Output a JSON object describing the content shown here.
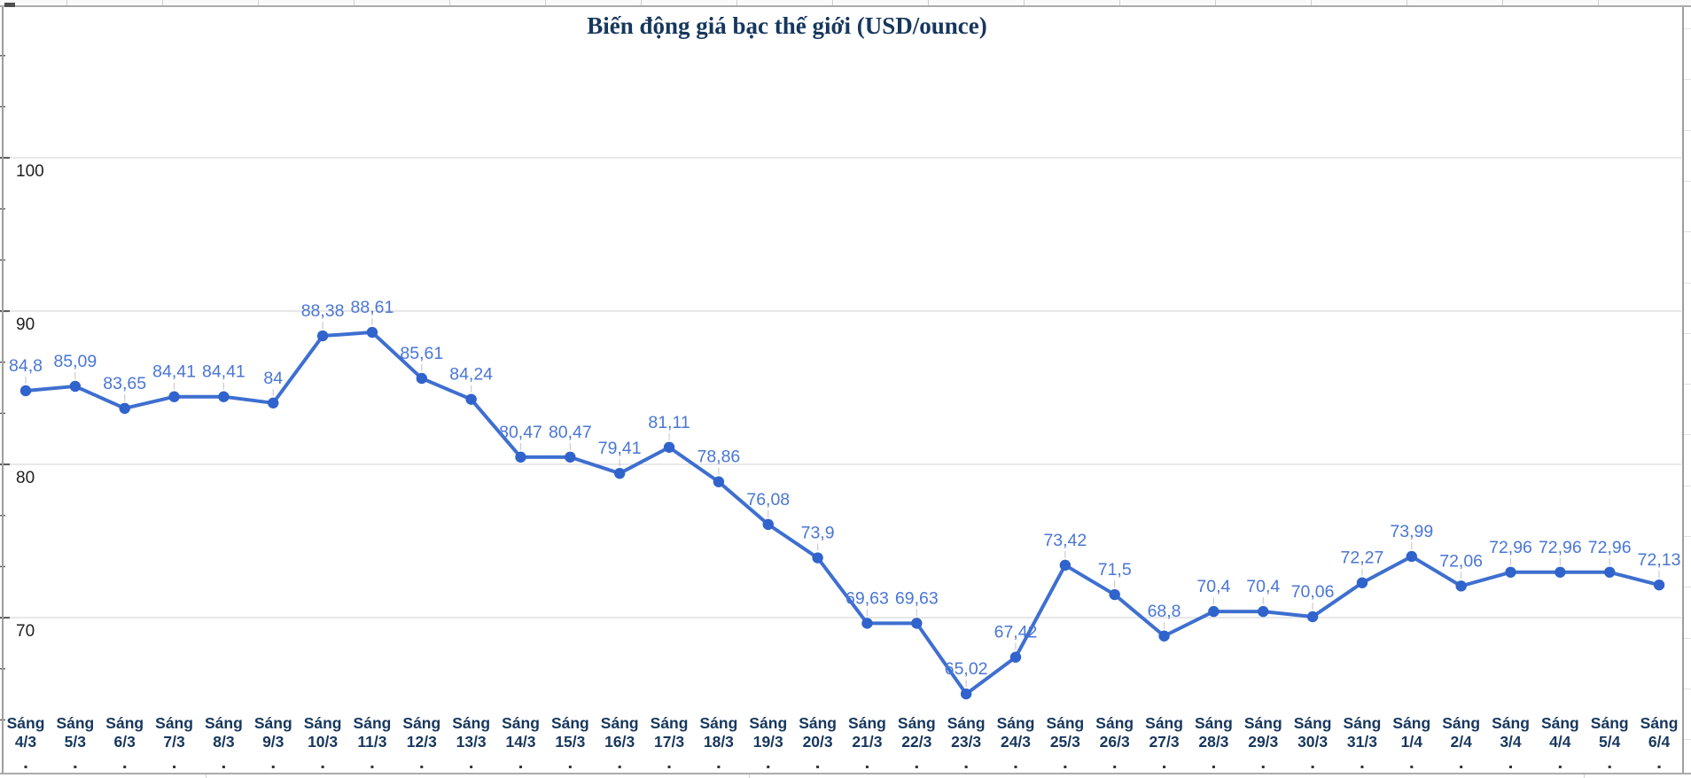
{
  "title": "Biến động giá bạc thế giới (USD/ounce)",
  "chart_data": {
    "type": "line",
    "title": "Biến động giá bạc thế giới (USD/ounce)",
    "xlabel": "",
    "ylabel": "",
    "category_prefix": "Sáng",
    "categories": [
      "4/3",
      "5/3",
      "6/3",
      "7/3",
      "8/3",
      "9/3",
      "10/3",
      "11/3",
      "12/3",
      "13/3",
      "14/3",
      "15/3",
      "16/3",
      "17/3",
      "18/3",
      "19/3",
      "20/3",
      "21/3",
      "22/3",
      "23/3",
      "24/3",
      "25/3",
      "26/3",
      "27/3",
      "28/3",
      "29/3",
      "30/3",
      "31/3",
      "1/4",
      "2/4",
      "3/4",
      "4/4",
      "5/4",
      "6/4"
    ],
    "values": [
      84.8,
      85.09,
      83.65,
      84.41,
      84.41,
      84,
      88.38,
      88.61,
      85.61,
      84.24,
      80.47,
      80.47,
      79.41,
      81.11,
      78.86,
      76.08,
      73.9,
      69.63,
      69.63,
      65.02,
      67.42,
      73.42,
      71.5,
      68.8,
      70.4,
      70.4,
      70.06,
      72.27,
      73.99,
      72.06,
      72.96,
      72.96,
      72.96,
      72.13
    ],
    "point_labels": [
      "84,8",
      "85,09",
      "83,65",
      "84,41",
      "84,41",
      "84",
      "88,38",
      "88,61",
      "85,61",
      "84,24",
      "80,47",
      "80,47",
      "79,41",
      "81,11",
      "78,86",
      "76,08",
      "73,9",
      "69,63",
      "69,63",
      "65,02",
      "67,42",
      "73,42",
      "71,5",
      "68,8",
      "70,4",
      "70,4",
      "70,06",
      "72,27",
      "73,99",
      "72,06",
      "72,96",
      "72,96",
      "72,96",
      "72,13"
    ],
    "y_ticks": [
      100,
      90,
      80,
      70
    ],
    "y_tick_labels": [
      "100",
      "90",
      "80",
      "70"
    ],
    "y_minor_per_major": 3,
    "ylim": [
      60,
      110
    ],
    "grid": true,
    "legend_position": "none",
    "colors": {
      "line": "#3e6fd0",
      "point": "#3063cb",
      "point_label": "#4a76d4",
      "x_label": "#17375d",
      "y_label": "#1f1f1f",
      "grid": "#d9d9d9",
      "leader": "#cccccc",
      "tick": "#555555",
      "title": "#17375d",
      "border": "#9e9e9e"
    }
  }
}
